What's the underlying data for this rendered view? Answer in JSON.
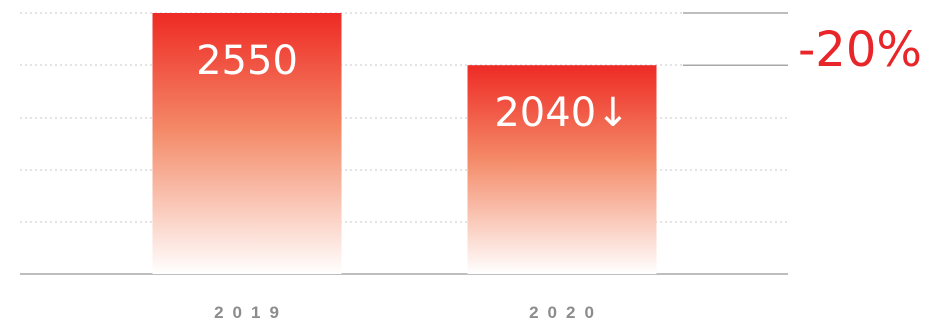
{
  "chart_data": {
    "type": "bar",
    "categories": [
      "2019",
      "2020"
    ],
    "values": [
      2550,
      2040
    ],
    "data_labels": [
      "2550",
      "2040↓"
    ],
    "change_annotation": "-20%",
    "ylim": [
      0,
      2550
    ],
    "grid": true,
    "colors": {
      "bar_top": "#ee2a25",
      "bar_mid": "#f48a68",
      "bar_bottom": "#ffffff",
      "accent": "#e8262a",
      "grid": "#c8c8c8",
      "axis": "#a8a8a8",
      "tick_text": "#8c8c8c"
    }
  }
}
